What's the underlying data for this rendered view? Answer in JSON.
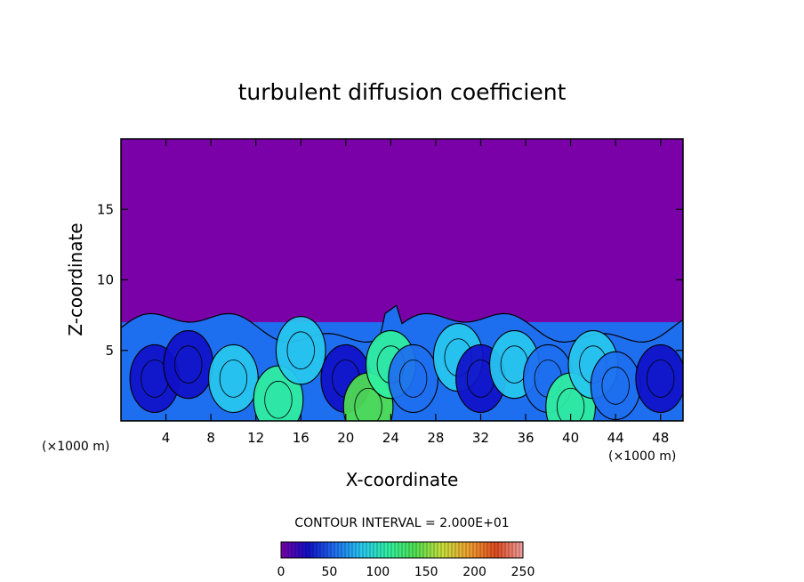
{
  "chart_data": {
    "type": "heatmap",
    "title": "turbulent diffusion coefficient",
    "xlabel": "X-coordinate",
    "ylabel": "Z-coordinate",
    "x_unit": "(×1000 m)",
    "y_unit": "(×1000 m)",
    "xlim": [
      0,
      50
    ],
    "ylim": [
      0,
      20
    ],
    "x_ticks": [
      4,
      8,
      12,
      16,
      20,
      24,
      28,
      32,
      36,
      40,
      44,
      48
    ],
    "y_ticks": [
      5,
      10,
      15
    ],
    "contour_interval_text": "CONTOUR INTERVAL = 2.000E+01",
    "colorbar": {
      "min": 0,
      "max": 250,
      "tick_values": [
        0,
        50,
        100,
        150,
        200,
        250
      ],
      "colors": [
        "#7a00a8",
        "#1010c8",
        "#1e6ef0",
        "#28c8f0",
        "#30f0a0",
        "#50e050",
        "#c8e03c",
        "#f0a030",
        "#e04a20",
        "#f0a0a0"
      ]
    },
    "background_value_color": "#7a00a8",
    "cells": [
      {
        "x": 3,
        "z": 3.0,
        "value": 40
      },
      {
        "x": 6,
        "z": 4.0,
        "value": 20
      },
      {
        "x": 10,
        "z": 3.0,
        "value": 70
      },
      {
        "x": 14,
        "z": 1.5,
        "value": 120
      },
      {
        "x": 16,
        "z": 5.0,
        "value": 80
      },
      {
        "x": 20,
        "z": 3.0,
        "value": 30
      },
      {
        "x": 22,
        "z": 1.0,
        "value": 130
      },
      {
        "x": 24,
        "z": 4.0,
        "value": 110
      },
      {
        "x": 26,
        "z": 3.0,
        "value": 50
      },
      {
        "x": 30,
        "z": 4.5,
        "value": 80
      },
      {
        "x": 32,
        "z": 3.0,
        "value": 30
      },
      {
        "x": 35,
        "z": 4.0,
        "value": 70
      },
      {
        "x": 38,
        "z": 3.0,
        "value": 60
      },
      {
        "x": 40,
        "z": 1.0,
        "value": 120
      },
      {
        "x": 42,
        "z": 4.0,
        "value": 80
      },
      {
        "x": 44,
        "z": 2.5,
        "value": 60
      },
      {
        "x": 48,
        "z": 3.0,
        "value": 25
      }
    ]
  }
}
